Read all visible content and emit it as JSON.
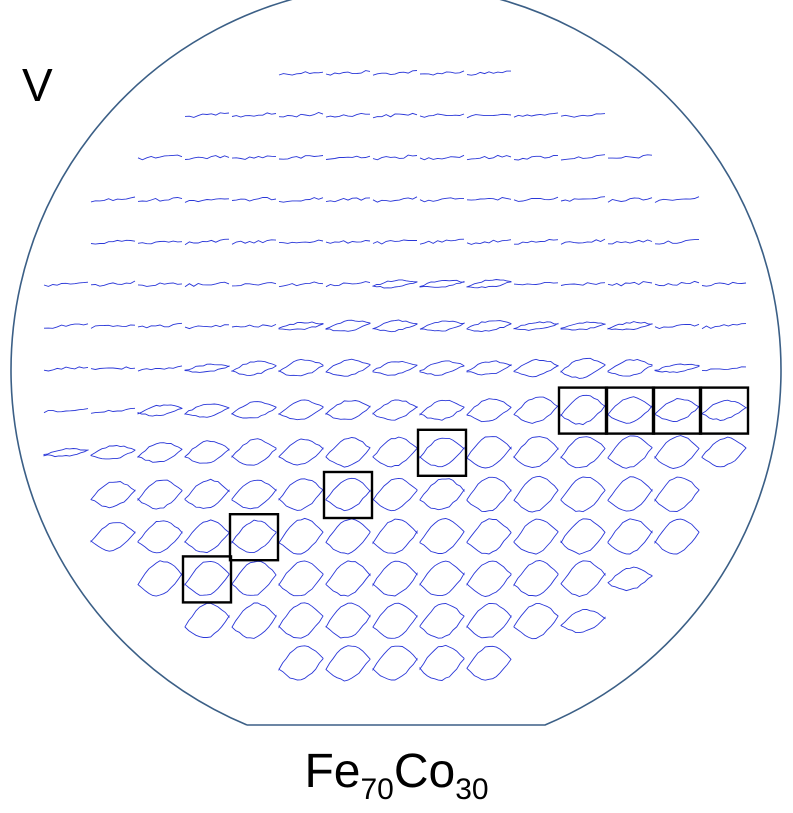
{
  "labels": {
    "corner": "V",
    "bottom": {
      "element1": "Fe",
      "sub1": "70",
      "element2": "Co",
      "sub2": "30"
    }
  },
  "colors": {
    "wafer_outline": "#3b5f86",
    "loops": "#2a37d8",
    "highlight": "#000000"
  },
  "wafer_map": {
    "row_counts": [
      5,
      9,
      11,
      13,
      13,
      15,
      15,
      15,
      15,
      15,
      13,
      13,
      11,
      9,
      5
    ],
    "loop_openness_rows": [
      [
        0,
        0,
        0,
        0,
        0
      ],
      [
        0,
        0,
        0,
        0,
        0,
        0,
        0,
        0,
        0
      ],
      [
        0,
        0,
        0,
        0,
        0,
        0,
        0,
        0,
        0,
        0,
        0
      ],
      [
        0,
        0,
        0,
        0,
        0,
        0,
        0,
        0,
        0,
        0,
        0,
        0,
        0
      ],
      [
        0,
        0,
        0,
        0,
        0,
        0,
        0,
        0,
        0,
        0.05,
        0,
        0,
        0
      ],
      [
        0,
        0,
        0,
        0,
        0,
        0,
        0,
        0.1,
        0.1,
        0.1,
        0.05,
        0.05,
        0,
        0,
        0
      ],
      [
        0,
        0,
        0,
        0,
        0,
        0.1,
        0.2,
        0.2,
        0.2,
        0.2,
        0.1,
        0.1,
        0.1,
        0,
        0
      ],
      [
        0,
        0,
        0,
        0.1,
        0.3,
        0.4,
        0.4,
        0.3,
        0.3,
        0.3,
        0.4,
        0.5,
        0.4,
        0.1,
        0
      ],
      [
        0.05,
        0.05,
        0.2,
        0.3,
        0.4,
        0.5,
        0.5,
        0.5,
        0.5,
        0.6,
        0.7,
        0.8,
        0.7,
        0.6,
        0.5
      ],
      [
        0.1,
        0.3,
        0.5,
        0.6,
        0.7,
        0.7,
        0.8,
        0.8,
        0.8,
        0.9,
        0.9,
        0.9,
        0.9,
        0.9,
        0.8
      ],
      [
        0.7,
        0.8,
        0.8,
        0.8,
        0.9,
        0.9,
        0.9,
        0.9,
        1,
        1,
        1,
        1,
        1
      ],
      [
        0.8,
        0.9,
        0.9,
        0.9,
        1,
        1,
        1,
        1,
        1,
        1,
        1,
        1,
        1
      ],
      [
        1,
        1,
        1,
        1,
        1,
        1,
        1,
        1,
        1,
        1,
        0.6
      ],
      [
        1,
        1,
        1,
        1,
        1,
        1,
        1,
        1,
        0.6
      ],
      [
        1,
        1,
        1,
        1,
        1
      ]
    ],
    "highlighted_cells": [
      {
        "row": 8,
        "col": 11
      },
      {
        "row": 8,
        "col": 12
      },
      {
        "row": 8,
        "col": 13
      },
      {
        "row": 8,
        "col": 14
      },
      {
        "row": 9,
        "col": 8
      },
      {
        "row": 10,
        "col": 5
      },
      {
        "row": 11,
        "col": 3
      },
      {
        "row": 12,
        "col": 1
      }
    ]
  }
}
